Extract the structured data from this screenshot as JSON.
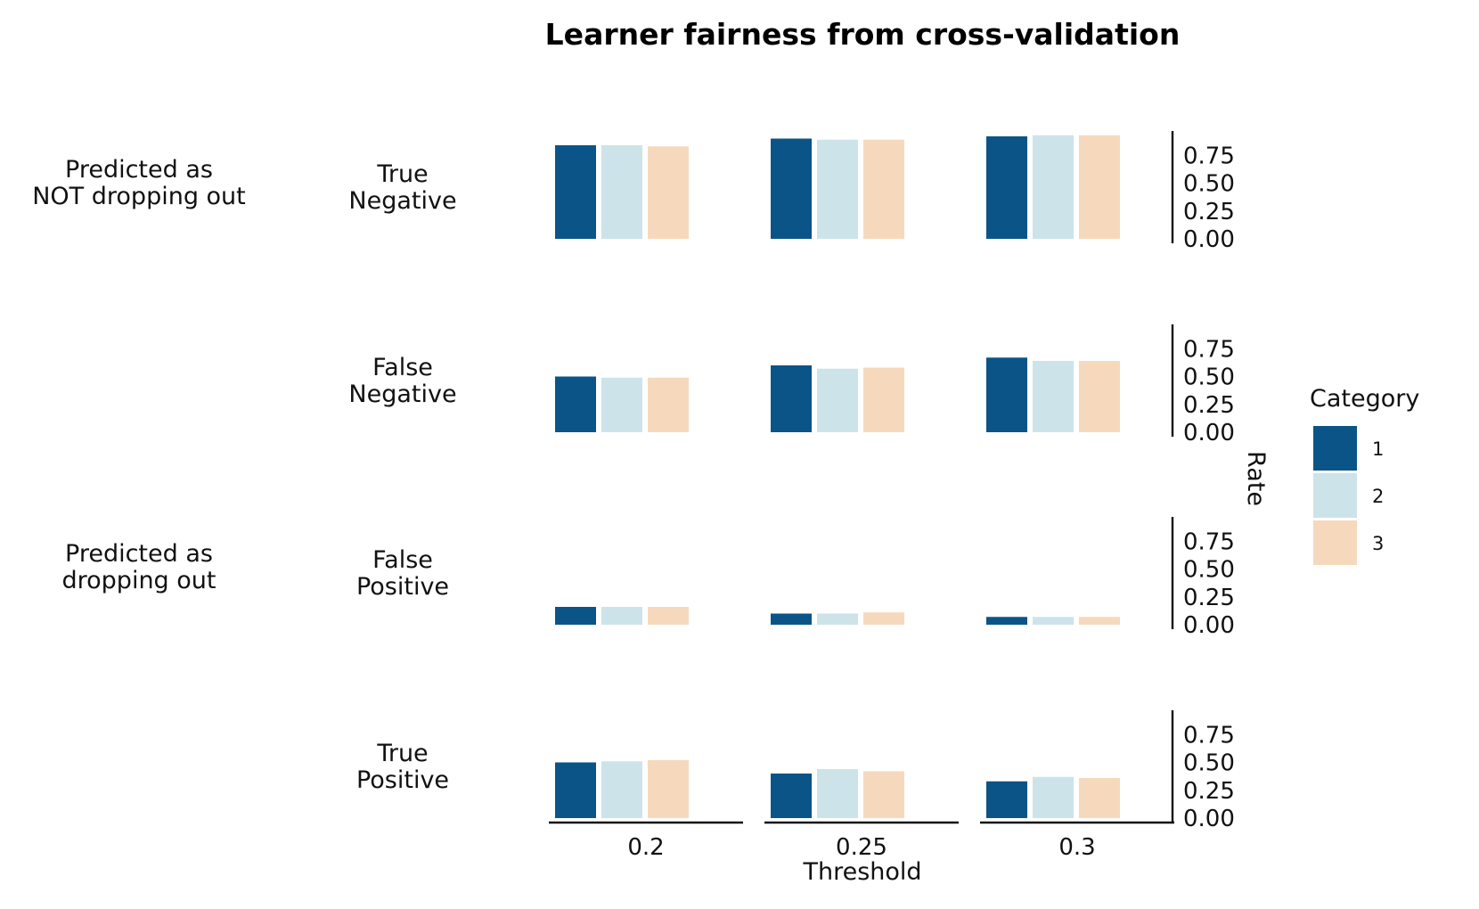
{
  "chart_data": {
    "type": "bar",
    "title": "Learner fairness from cross-validation",
    "xlabel": "Threshold",
    "ylabel": "Rate",
    "categories": [
      "0.2",
      "0.25",
      "0.3"
    ],
    "yticks": [
      "0.75",
      "0.50",
      "0.25",
      "0.00"
    ],
    "ylim": [
      0,
      1
    ],
    "grid": false,
    "legend": {
      "title": "Category",
      "placement": "right",
      "entries": [
        {
          "label": "1",
          "color": "#0b5487"
        },
        {
          "label": "2",
          "color": "#cde3ea"
        },
        {
          "label": "3",
          "color": "#f6d9bc"
        }
      ]
    },
    "row_groups": [
      {
        "label": "Predicted as\nNOT dropping out"
      },
      {
        "label": "Predicted as\ndropping out"
      }
    ],
    "panels": [
      {
        "label": "True\nNegative",
        "series": [
          {
            "name": "1",
            "values": [
              0.84,
              0.9,
              0.92
            ]
          },
          {
            "name": "2",
            "values": [
              0.84,
              0.89,
              0.93
            ]
          },
          {
            "name": "3",
            "values": [
              0.83,
              0.89,
              0.93
            ]
          }
        ]
      },
      {
        "label": "False\nNegative",
        "series": [
          {
            "name": "1",
            "values": [
              0.5,
              0.6,
              0.67
            ]
          },
          {
            "name": "2",
            "values": [
              0.49,
              0.57,
              0.64
            ]
          },
          {
            "name": "3",
            "values": [
              0.49,
              0.58,
              0.64
            ]
          }
        ]
      },
      {
        "label": "False\nPositive",
        "series": [
          {
            "name": "1",
            "values": [
              0.16,
              0.1,
              0.07
            ]
          },
          {
            "name": "2",
            "values": [
              0.16,
              0.1,
              0.07
            ]
          },
          {
            "name": "3",
            "values": [
              0.16,
              0.11,
              0.07
            ]
          }
        ]
      },
      {
        "label": "True\nPositive",
        "series": [
          {
            "name": "1",
            "values": [
              0.5,
              0.4,
              0.33
            ]
          },
          {
            "name": "2",
            "values": [
              0.51,
              0.44,
              0.37
            ]
          },
          {
            "name": "3",
            "values": [
              0.52,
              0.42,
              0.36
            ]
          }
        ]
      }
    ]
  }
}
